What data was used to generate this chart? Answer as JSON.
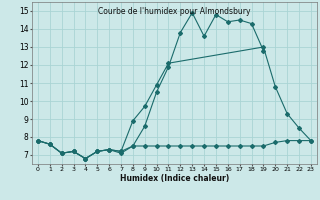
{
  "title": "Courbe de l'humidex pour Almondsbury",
  "xlabel": "Humidex (Indice chaleur)",
  "xlim": [
    -0.5,
    23.5
  ],
  "ylim": [
    6.5,
    15.5
  ],
  "xticks": [
    0,
    1,
    2,
    3,
    4,
    5,
    6,
    7,
    8,
    9,
    10,
    11,
    12,
    13,
    14,
    15,
    16,
    17,
    18,
    19,
    20,
    21,
    22,
    23
  ],
  "yticks": [
    7,
    8,
    9,
    10,
    11,
    12,
    13,
    14,
    15
  ],
  "bg_color": "#cce8e8",
  "grid_color": "#aad4d4",
  "line_color": "#1a6b6b",
  "line1_x": [
    0,
    1,
    2,
    3,
    4,
    5,
    6,
    7,
    8,
    9,
    10,
    11,
    12,
    13,
    14,
    15,
    16,
    17,
    18,
    19
  ],
  "line1_y": [
    7.8,
    7.6,
    7.1,
    7.2,
    6.8,
    7.2,
    7.3,
    7.1,
    7.5,
    8.6,
    10.5,
    11.9,
    13.8,
    14.9,
    13.6,
    14.8,
    14.4,
    14.5,
    14.3,
    12.8
  ],
  "line2_x": [
    0,
    1,
    2,
    3,
    4,
    5,
    6,
    7,
    8,
    9,
    10,
    11,
    19,
    20,
    21,
    22,
    23
  ],
  "line2_y": [
    7.8,
    7.6,
    7.1,
    7.2,
    6.8,
    7.2,
    7.3,
    7.2,
    8.9,
    9.7,
    10.9,
    12.1,
    13.0,
    10.8,
    9.3,
    8.5,
    7.8
  ],
  "line3_x": [
    0,
    1,
    2,
    3,
    4,
    5,
    6,
    7,
    8,
    9,
    10,
    11,
    12,
    13,
    14,
    15,
    16,
    17,
    18,
    19,
    20,
    21,
    22,
    23
  ],
  "line3_y": [
    7.8,
    7.6,
    7.1,
    7.2,
    6.8,
    7.2,
    7.3,
    7.2,
    7.5,
    7.5,
    7.5,
    7.5,
    7.5,
    7.5,
    7.5,
    7.5,
    7.5,
    7.5,
    7.5,
    7.5,
    7.7,
    7.8,
    7.8,
    7.8
  ]
}
